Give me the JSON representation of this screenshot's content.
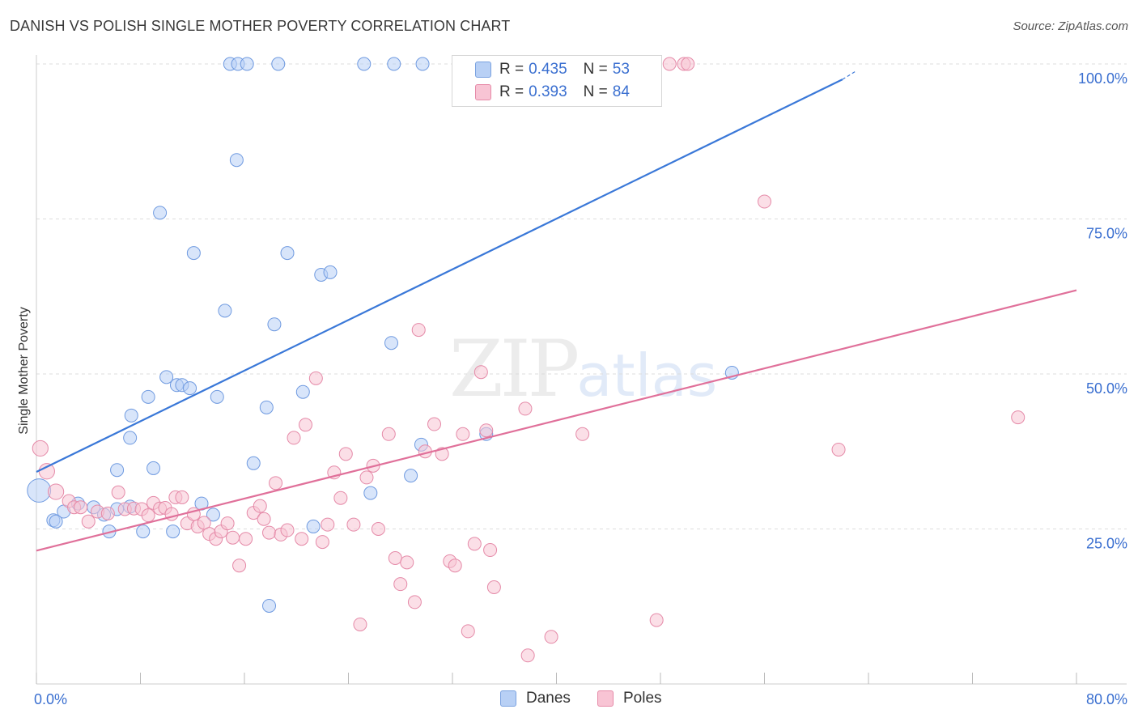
{
  "title": "DANISH VS POLISH SINGLE MOTHER POVERTY CORRELATION CHART",
  "source": "Source: ZipAtlas.com",
  "watermark": {
    "zip": "ZIP",
    "atlas": "atlas"
  },
  "colors": {
    "danes": "#3a78d8",
    "poles": "#e0709a",
    "danes_fill": "#b8d0f5",
    "poles_fill": "#f8c4d4",
    "grid": "#dddddd",
    "tick_label": "#3a6fd0"
  },
  "legend_top": [
    {
      "r_label": "R =",
      "r_value": "0.435",
      "n_label": "N =",
      "n_value": "53",
      "color": "blue"
    },
    {
      "r_label": "R =",
      "r_value": "0.393",
      "n_label": "N =",
      "n_value": "84",
      "color": "pink"
    }
  ],
  "legend_bottom": [
    {
      "label": "Danes"
    },
    {
      "label": "Poles"
    }
  ],
  "chart_data": {
    "type": "scatter",
    "title": "DANISH VS POLISH SINGLE MOTHER POVERTY CORRELATION CHART",
    "xlabel": "",
    "ylabel": "Single Mother Poverty",
    "xlim": [
      0,
      80
    ],
    "ylim": [
      0,
      100
    ],
    "x_tick_labels": [
      "0.0%",
      "80.0%"
    ],
    "y_tick_labels": [
      "25.0%",
      "50.0%",
      "75.0%",
      "100.0%"
    ],
    "y_ticks": [
      25,
      50,
      75,
      100
    ],
    "grid": true,
    "legend": "bottom-center",
    "series": [
      {
        "name": "Danes",
        "r": 0.435,
        "n": 53,
        "trend": {
          "x0": 0,
          "y0": 34.2,
          "x1": 62,
          "y1": 97.5,
          "dash_to_x": 63,
          "dash_to_y": 98.8
        },
        "points": [
          [
            0.2,
            31.2,
            18
          ],
          [
            1.3,
            26.4,
            10
          ],
          [
            2.1,
            27.8,
            10
          ],
          [
            1.5,
            26.2,
            10
          ],
          [
            3.2,
            29.1,
            10
          ],
          [
            4.4,
            28.5,
            10
          ],
          [
            5.2,
            27.3,
            10
          ],
          [
            6.2,
            28.2,
            10
          ],
          [
            5.6,
            24.6,
            10
          ],
          [
            7.2,
            28.6,
            10
          ],
          [
            6.2,
            34.5,
            10
          ],
          [
            7.2,
            39.7,
            10
          ],
          [
            7.3,
            43.3,
            10
          ],
          [
            8.2,
            24.6,
            10
          ],
          [
            8.6,
            46.3,
            10
          ],
          [
            9.0,
            34.8,
            10
          ],
          [
            9.5,
            76.0,
            10
          ],
          [
            10.0,
            49.5,
            10
          ],
          [
            10.5,
            24.6,
            10
          ],
          [
            10.8,
            48.2,
            10
          ],
          [
            11.2,
            48.2,
            10
          ],
          [
            11.8,
            47.7,
            10
          ],
          [
            12.1,
            69.5,
            10
          ],
          [
            12.7,
            29.1,
            10
          ],
          [
            13.6,
            27.3,
            10
          ],
          [
            13.9,
            46.3,
            10
          ],
          [
            14.5,
            60.2,
            10
          ],
          [
            15.4,
            84.5,
            10
          ],
          [
            16.7,
            35.6,
            10
          ],
          [
            17.7,
            44.6,
            10
          ],
          [
            17.9,
            12.6,
            10
          ],
          [
            18.3,
            58.0,
            10
          ],
          [
            19.3,
            69.5,
            10
          ],
          [
            20.5,
            47.1,
            10
          ],
          [
            21.3,
            25.4,
            10
          ],
          [
            21.9,
            66.0,
            10
          ],
          [
            22.6,
            66.4,
            10
          ],
          [
            27.3,
            55.0,
            10
          ],
          [
            25.7,
            30.8,
            10
          ],
          [
            28.8,
            33.6,
            10
          ],
          [
            29.6,
            38.6,
            10
          ],
          [
            34.6,
            40.3,
            10
          ],
          [
            53.5,
            50.2,
            10
          ],
          [
            14.9,
            100,
            10
          ],
          [
            15.5,
            100,
            10
          ],
          [
            16.2,
            100,
            10
          ],
          [
            18.6,
            100,
            10
          ],
          [
            25.2,
            100,
            10
          ],
          [
            27.5,
            100,
            10
          ],
          [
            29.7,
            100,
            10
          ],
          [
            37.9,
            100,
            10
          ],
          [
            44.0,
            100,
            10
          ]
        ]
      },
      {
        "name": "Poles",
        "r": 0.393,
        "n": 84,
        "trend": {
          "x0": 0,
          "y0": 21.5,
          "x1": 80,
          "y1": 63.5
        },
        "points": [
          [
            0.3,
            38.0,
            12
          ],
          [
            0.8,
            34.3,
            12
          ],
          [
            1.5,
            31.0,
            12
          ],
          [
            2.5,
            29.5,
            10
          ],
          [
            2.9,
            28.5,
            10
          ],
          [
            3.4,
            28.5,
            10
          ],
          [
            4.0,
            26.2,
            10
          ],
          [
            4.7,
            27.8,
            10
          ],
          [
            5.5,
            27.5,
            10
          ],
          [
            6.3,
            30.9,
            10
          ],
          [
            6.8,
            28.2,
            10
          ],
          [
            7.5,
            28.3,
            10
          ],
          [
            8.1,
            28.2,
            10
          ],
          [
            8.6,
            27.2,
            10
          ],
          [
            9.0,
            29.2,
            10
          ],
          [
            9.5,
            28.3,
            10
          ],
          [
            9.9,
            28.4,
            10
          ],
          [
            10.4,
            27.4,
            10
          ],
          [
            10.7,
            30.1,
            10
          ],
          [
            11.2,
            30.1,
            10
          ],
          [
            11.6,
            25.9,
            10
          ],
          [
            12.1,
            27.4,
            10
          ],
          [
            12.4,
            25.4,
            10
          ],
          [
            12.9,
            26.0,
            10
          ],
          [
            13.3,
            24.2,
            10
          ],
          [
            13.8,
            23.4,
            10
          ],
          [
            14.2,
            24.6,
            10
          ],
          [
            14.7,
            25.9,
            10
          ],
          [
            15.1,
            23.6,
            10
          ],
          [
            15.6,
            19.1,
            10
          ],
          [
            16.1,
            23.4,
            10
          ],
          [
            16.7,
            27.6,
            10
          ],
          [
            17.2,
            28.7,
            10
          ],
          [
            17.5,
            26.6,
            10
          ],
          [
            17.9,
            24.4,
            10
          ],
          [
            18.4,
            32.4,
            10
          ],
          [
            18.8,
            24.1,
            10
          ],
          [
            19.3,
            24.8,
            10
          ],
          [
            19.8,
            39.7,
            10
          ],
          [
            20.4,
            23.4,
            10
          ],
          [
            20.7,
            41.8,
            10
          ],
          [
            21.5,
            49.3,
            10
          ],
          [
            22.0,
            22.9,
            10
          ],
          [
            22.4,
            25.7,
            10
          ],
          [
            22.9,
            34.1,
            10
          ],
          [
            23.4,
            30.0,
            10
          ],
          [
            23.8,
            37.1,
            10
          ],
          [
            24.4,
            25.7,
            10
          ],
          [
            24.9,
            9.6,
            10
          ],
          [
            25.4,
            33.3,
            10
          ],
          [
            25.9,
            35.2,
            10
          ],
          [
            26.3,
            25.0,
            10
          ],
          [
            27.1,
            40.3,
            10
          ],
          [
            27.6,
            20.3,
            10
          ],
          [
            28.0,
            16.1,
            10
          ],
          [
            28.5,
            19.6,
            10
          ],
          [
            29.1,
            13.2,
            10
          ],
          [
            29.4,
            57.1,
            10
          ],
          [
            29.9,
            37.5,
            10
          ],
          [
            30.6,
            41.9,
            10
          ],
          [
            31.2,
            37.1,
            10
          ],
          [
            31.8,
            19.8,
            10
          ],
          [
            32.2,
            19.1,
            10
          ],
          [
            32.8,
            40.3,
            10
          ],
          [
            33.2,
            8.5,
            10
          ],
          [
            33.7,
            22.6,
            10
          ],
          [
            34.2,
            50.3,
            10
          ],
          [
            34.6,
            40.9,
            10
          ],
          [
            34.9,
            21.6,
            10
          ],
          [
            35.2,
            15.6,
            10
          ],
          [
            37.6,
            44.4,
            10
          ],
          [
            37.8,
            4.6,
            10
          ],
          [
            39.6,
            7.6,
            10
          ],
          [
            42.0,
            40.3,
            10
          ],
          [
            47.7,
            10.3,
            10
          ],
          [
            56.0,
            77.8,
            10
          ],
          [
            61.7,
            37.8,
            10
          ],
          [
            75.5,
            43.0,
            10
          ],
          [
            43.0,
            100,
            10
          ],
          [
            48.7,
            100,
            10
          ],
          [
            49.8,
            100,
            10
          ],
          [
            50.1,
            100,
            10
          ],
          [
            41.5,
            100,
            10
          ]
        ]
      }
    ]
  }
}
